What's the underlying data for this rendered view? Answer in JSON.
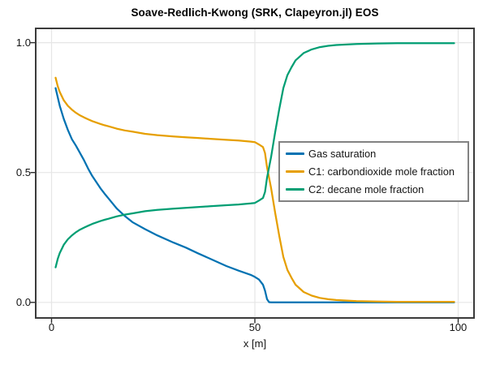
{
  "chart_data": {
    "type": "line",
    "title": "Soave-Redlich-Kwong (SRK, Clapeyron.jl) EOS",
    "xlabel": "x [m]",
    "ylabel": "",
    "xlim": [
      -3.9,
      103.9
    ],
    "ylim": [
      -0.06,
      1.055
    ],
    "grid": true,
    "legend_position": "middle-right",
    "xticks": {
      "values": [
        0,
        50,
        100
      ],
      "labels": [
        "0",
        "50",
        "100"
      ]
    },
    "yticks": {
      "values": [
        0,
        0.5,
        1
      ],
      "labels": [
        "0.0",
        "0.5",
        "1.0"
      ]
    },
    "x": [
      1,
      1.5,
      2,
      3,
      4,
      5,
      6,
      7,
      8,
      9,
      10,
      12,
      13,
      14,
      16,
      18,
      20,
      23,
      26,
      30,
      33,
      36,
      39,
      43,
      46,
      49,
      50,
      51,
      52,
      52.5,
      53,
      53.5,
      54,
      55,
      56,
      57,
      58,
      59,
      60,
      62,
      64,
      66,
      68,
      70,
      75,
      80,
      85,
      90,
      95,
      99
    ],
    "series": [
      {
        "name": "Gas saturation",
        "color": "#0072B2",
        "values": [
          0.825,
          0.79,
          0.757,
          0.706,
          0.664,
          0.628,
          0.603,
          0.575,
          0.547,
          0.515,
          0.487,
          0.44,
          0.419,
          0.4,
          0.362,
          0.333,
          0.308,
          0.282,
          0.258,
          0.23,
          0.211,
          0.189,
          0.168,
          0.14,
          0.122,
          0.106,
          0.098,
          0.088,
          0.068,
          0.045,
          0.012,
          0.001,
          0,
          0,
          0,
          0,
          0,
          0,
          0,
          0,
          0,
          0,
          0,
          0,
          0,
          0,
          0,
          0,
          0,
          0
        ]
      },
      {
        "name": "C1: carbondioxide mole fraction",
        "color": "#E69F00",
        "values": [
          0.865,
          0.833,
          0.81,
          0.778,
          0.757,
          0.742,
          0.73,
          0.72,
          0.712,
          0.705,
          0.698,
          0.687,
          0.682,
          0.678,
          0.669,
          0.662,
          0.657,
          0.649,
          0.644,
          0.639,
          0.636,
          0.633,
          0.63,
          0.626,
          0.623,
          0.619,
          0.617,
          0.608,
          0.598,
          0.575,
          0.52,
          0.48,
          0.44,
          0.345,
          0.255,
          0.175,
          0.125,
          0.095,
          0.068,
          0.04,
          0.026,
          0.017,
          0.012,
          0.009,
          0.005,
          0.003,
          0.002,
          0.002,
          0.002,
          0.002
        ]
      },
      {
        "name": "C2: decane mole fraction",
        "color": "#009E73",
        "values": [
          0.135,
          0.167,
          0.19,
          0.222,
          0.243,
          0.258,
          0.27,
          0.28,
          0.288,
          0.295,
          0.302,
          0.313,
          0.318,
          0.322,
          0.331,
          0.338,
          0.343,
          0.351,
          0.356,
          0.361,
          0.364,
          0.367,
          0.37,
          0.374,
          0.377,
          0.381,
          0.383,
          0.392,
          0.402,
          0.425,
          0.48,
          0.52,
          0.56,
          0.655,
          0.745,
          0.825,
          0.875,
          0.905,
          0.932,
          0.96,
          0.974,
          0.983,
          0.988,
          0.991,
          0.995,
          0.997,
          0.998,
          0.998,
          0.998,
          0.998
        ]
      }
    ]
  },
  "style": {
    "grid_color": "#e6e6e6",
    "spine_color": "#3b3b3b",
    "tick_color": "#2b2b2b",
    "legend_border_color": "#828282"
  }
}
